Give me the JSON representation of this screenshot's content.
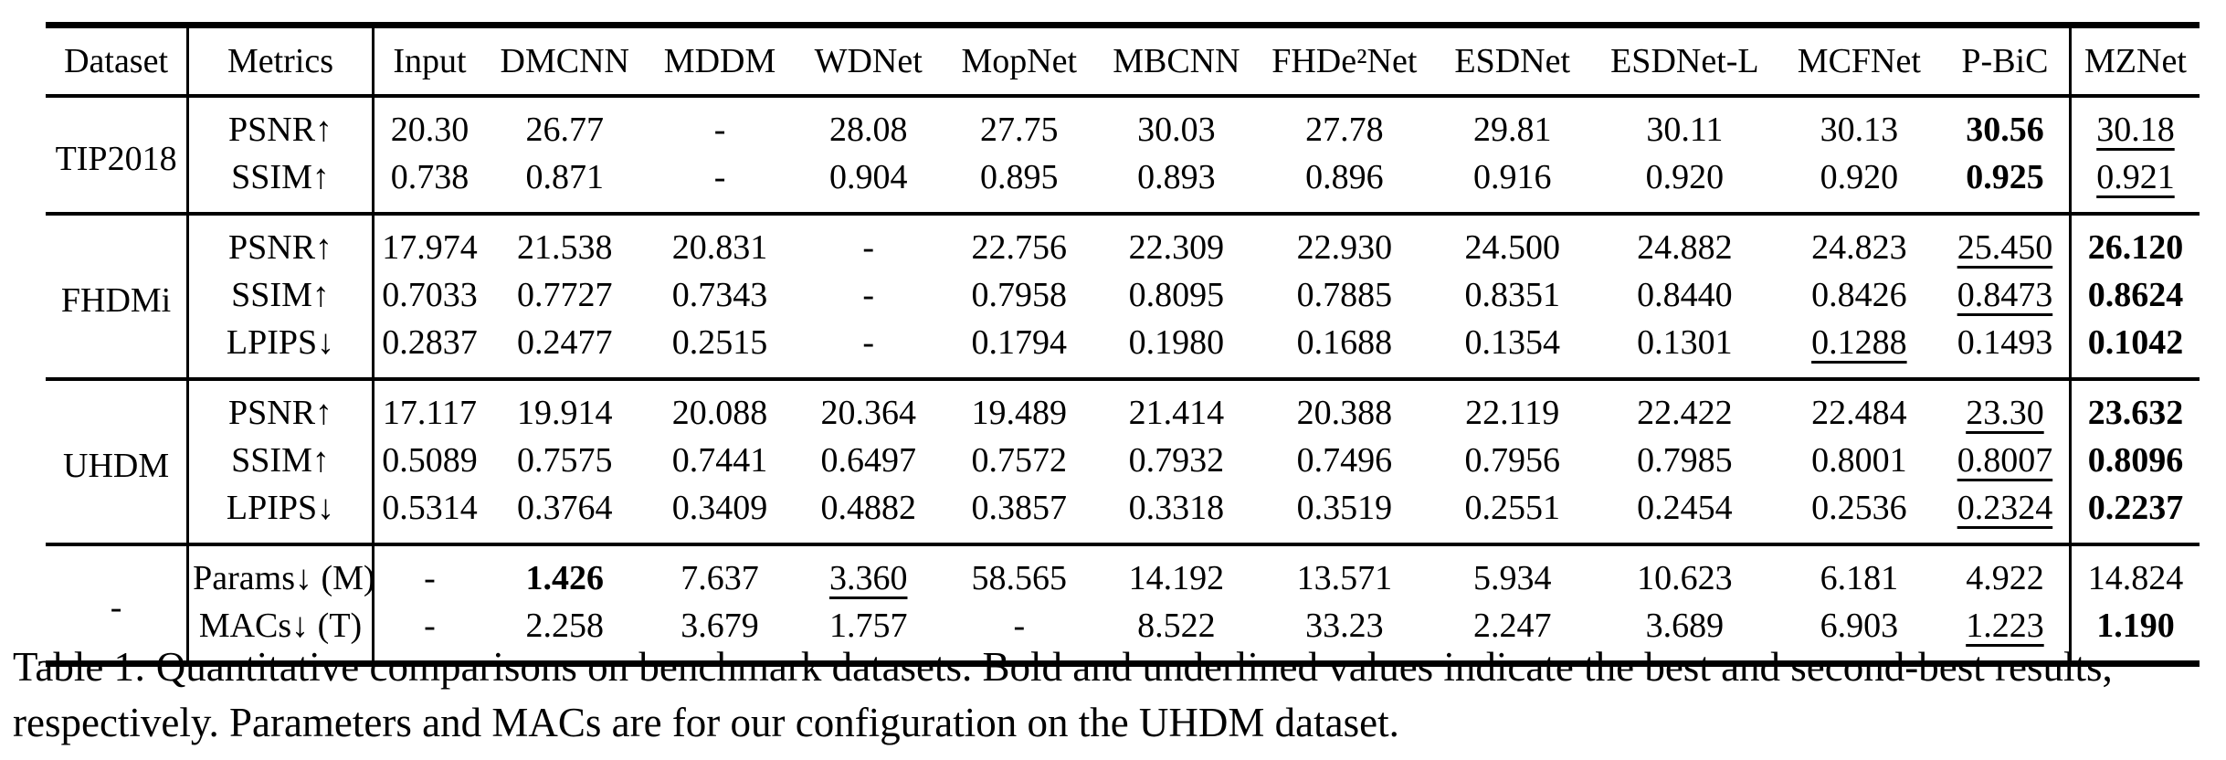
{
  "colors": {
    "text": "#000000",
    "background": "#ffffff",
    "rule": "#000000"
  },
  "table": {
    "columns": [
      "Dataset",
      "Metrics",
      "Input",
      "DMCNN",
      "MDDM",
      "WDNet",
      "MopNet",
      "MBCNN",
      "FHDe²Net",
      "ESDNet",
      "ESDNet-L",
      "MCFNet",
      "P-BiC",
      "MZNet"
    ],
    "legend": {
      "bold_means": "best result",
      "underline_means": "second-best result"
    },
    "sections": [
      {
        "dataset": "TIP2018",
        "rows": [
          {
            "metric": "PSNR↑",
            "values": [
              "20.30",
              "26.77",
              "-",
              "28.08",
              "27.75",
              "30.03",
              "27.78",
              "29.81",
              "30.11",
              "30.13",
              {
                "v": "30.56",
                "b": true
              },
              {
                "v": "30.18",
                "u": true
              }
            ]
          },
          {
            "metric": "SSIM↑",
            "values": [
              "0.738",
              "0.871",
              "-",
              "0.904",
              "0.895",
              "0.893",
              "0.896",
              "0.916",
              "0.920",
              "0.920",
              {
                "v": "0.925",
                "b": true
              },
              {
                "v": "0.921",
                "u": true
              }
            ]
          }
        ]
      },
      {
        "dataset": "FHDMi",
        "rows": [
          {
            "metric": "PSNR↑",
            "values": [
              "17.974",
              "21.538",
              "20.831",
              "-",
              "22.756",
              "22.309",
              "22.930",
              "24.500",
              "24.882",
              "24.823",
              {
                "v": "25.450",
                "u": true
              },
              {
                "v": "26.120",
                "b": true
              }
            ]
          },
          {
            "metric": "SSIM↑",
            "values": [
              "0.7033",
              "0.7727",
              "0.7343",
              "-",
              "0.7958",
              "0.8095",
              "0.7885",
              "0.8351",
              "0.8440",
              "0.8426",
              {
                "v": "0.8473",
                "u": true
              },
              {
                "v": "0.8624",
                "b": true
              }
            ]
          },
          {
            "metric": "LPIPS↓",
            "values": [
              "0.2837",
              "0.2477",
              "0.2515",
              "-",
              "0.1794",
              "0.1980",
              "0.1688",
              "0.1354",
              "0.1301",
              {
                "v": "0.1288",
                "u": true
              },
              "0.1493",
              {
                "v": "0.1042",
                "b": true
              }
            ]
          }
        ]
      },
      {
        "dataset": "UHDM",
        "rows": [
          {
            "metric": "PSNR↑",
            "values": [
              "17.117",
              "19.914",
              "20.088",
              "20.364",
              "19.489",
              "21.414",
              "20.388",
              "22.119",
              "22.422",
              "22.484",
              {
                "v": "23.30",
                "u": true
              },
              {
                "v": "23.632",
                "b": true
              }
            ]
          },
          {
            "metric": "SSIM↑",
            "values": [
              "0.5089",
              "0.7575",
              "0.7441",
              "0.6497",
              "0.7572",
              "0.7932",
              "0.7496",
              "0.7956",
              "0.7985",
              "0.8001",
              {
                "v": "0.8007",
                "u": true
              },
              {
                "v": "0.8096",
                "b": true
              }
            ]
          },
          {
            "metric": "LPIPS↓",
            "values": [
              "0.5314",
              "0.3764",
              "0.3409",
              "0.4882",
              "0.3857",
              "0.3318",
              "0.3519",
              "0.2551",
              "0.2454",
              "0.2536",
              {
                "v": "0.2324",
                "u": true
              },
              {
                "v": "0.2237",
                "b": true
              }
            ]
          }
        ]
      },
      {
        "dataset": "-",
        "rows": [
          {
            "metric": "Params↓ (M)",
            "values": [
              "-",
              {
                "v": "1.426",
                "b": true
              },
              "7.637",
              {
                "v": "3.360",
                "u": true
              },
              "58.565",
              "14.192",
              "13.571",
              "5.934",
              "10.623",
              "6.181",
              "4.922",
              "14.824"
            ]
          },
          {
            "metric": "MACs↓ (T)",
            "values": [
              "-",
              "2.258",
              "3.679",
              "1.757",
              "-",
              "8.522",
              "33.23",
              "2.247",
              "3.689",
              "6.903",
              {
                "v": "1.223",
                "u": true
              },
              {
                "v": "1.190",
                "b": true
              }
            ]
          }
        ]
      }
    ]
  },
  "caption": {
    "line1": "Table 1: Quantitative comparisons on benchmark datasets. Bold and underlined values indicate the best and second-best results,",
    "line2": "respectively. Parameters and MACs are for our configuration on the UHDM dataset."
  }
}
